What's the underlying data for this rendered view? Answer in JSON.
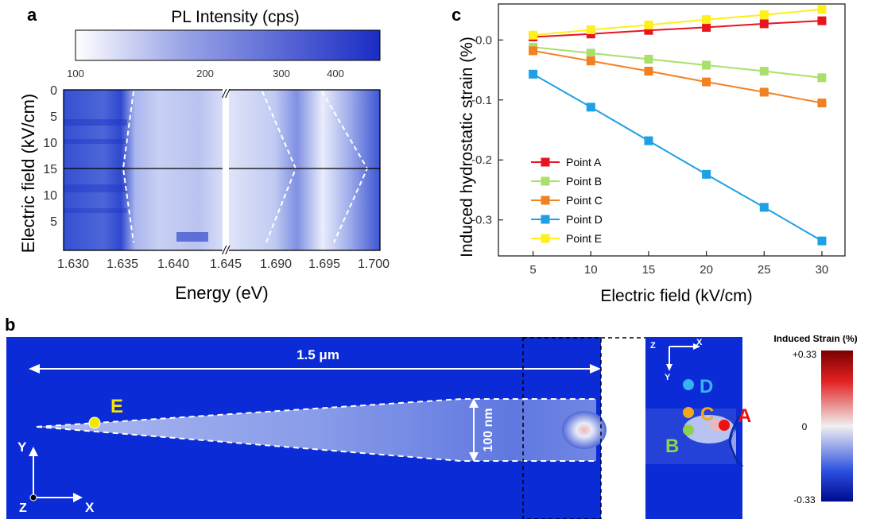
{
  "panels": {
    "a": {
      "label": "a",
      "colorbar": {
        "title": "PL Intensity (cps)",
        "ticks": [
          "100",
          "200",
          "300",
          "400"
        ],
        "color_low": "#ffffff",
        "color_high": "#1a2cc4"
      },
      "ylabel": "Electric field (kV/cm)",
      "yticks_top": [
        "0",
        "5",
        "10",
        "15"
      ],
      "yticks_bottom": [
        "10",
        "5"
      ],
      "xlabel": "Energy (eV)",
      "xticks_left": [
        "1.630",
        "1.635",
        "1.640",
        "1.645"
      ],
      "xticks_right": [
        "1.690",
        "1.695",
        "1.700"
      ],
      "break_mark": "//"
    },
    "b": {
      "label": "b",
      "length_label": "1.5 μm",
      "width_label": "100 nm",
      "points": [
        {
          "id": "E",
          "color": "#f5e600"
        },
        {
          "id": "D",
          "color": "#36b3f0"
        },
        {
          "id": "C",
          "color": "#f5a61a"
        },
        {
          "id": "B",
          "color": "#8fd14f"
        },
        {
          "id": "A",
          "color": "#ee1111"
        }
      ],
      "axes_main": {
        "x": "X",
        "y": "Y",
        "z": "Z"
      },
      "axes_inset": {
        "x": "X",
        "y": "Y",
        "z": "Z"
      },
      "strain_colorbar": {
        "title": "Induced Strain (%)",
        "max": "+0.33",
        "mid": "0",
        "min": "-0.33"
      },
      "background_color": "#0a2bd6"
    }
  },
  "chart_data": {
    "label": "c",
    "type": "line",
    "xlabel": "Electric field (kV/cm)",
    "ylabel": "Induced hydrostatic strain (%)",
    "xlim": [
      2,
      32
    ],
    "ylim": [
      -0.36,
      0.06
    ],
    "xticks": [
      5,
      10,
      15,
      20,
      25,
      30
    ],
    "yticks": [
      0.0,
      -0.1,
      -0.2,
      -0.3
    ],
    "ytick_labels": [
      "0.0",
      "-0.1",
      "-0.2",
      "-0.3"
    ],
    "legend_position": "bottom-left",
    "x": [
      5,
      10,
      15,
      20,
      25,
      30
    ],
    "series": [
      {
        "name": "Point A",
        "color": "#e8141e",
        "values": [
          0.005,
          0.01,
          0.016,
          0.021,
          0.027,
          0.032
        ]
      },
      {
        "name": "Point B",
        "color": "#a8e06b",
        "values": [
          -0.012,
          -0.022,
          -0.032,
          -0.042,
          -0.052,
          -0.063
        ]
      },
      {
        "name": "Point C",
        "color": "#f28122",
        "values": [
          -0.018,
          -0.035,
          -0.052,
          -0.07,
          -0.087,
          -0.105
        ]
      },
      {
        "name": "Point D",
        "color": "#1ea0e6",
        "values": [
          -0.057,
          -0.112,
          -0.168,
          -0.224,
          -0.279,
          -0.335
        ]
      },
      {
        "name": "Point E",
        "color": "#ffef1a",
        "values": [
          0.008,
          0.017,
          0.025,
          0.034,
          0.042,
          0.051
        ]
      }
    ]
  }
}
